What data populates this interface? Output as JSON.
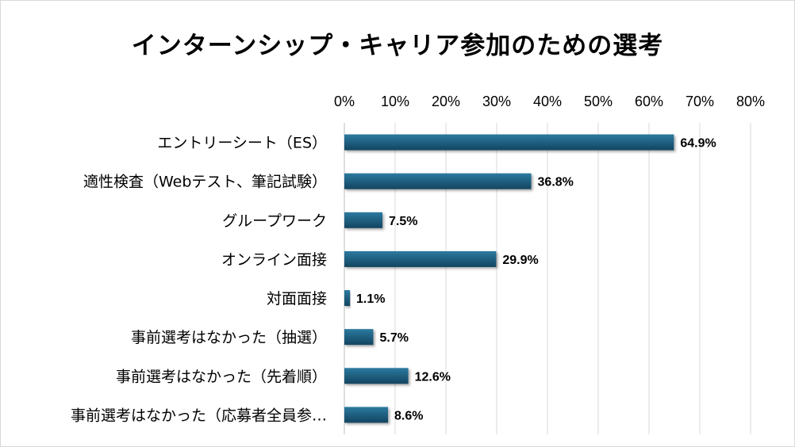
{
  "chart_data": {
    "type": "bar",
    "orientation": "horizontal",
    "title": "インターンシップ・キャリア参加のための選考",
    "xlim": [
      0,
      80
    ],
    "x_ticks": [
      "0%",
      "10%",
      "20%",
      "30%",
      "40%",
      "50%",
      "60%",
      "70%",
      "80%"
    ],
    "x_axis_position": "top",
    "grid": true,
    "bar_color": "#1f5f7f",
    "categories": [
      "エントリーシート（ES）",
      "適性検査（Webテスト、筆記試験）",
      "グループワーク",
      "オンライン面接",
      "対面面接",
      "事前選考はなかった（抽選）",
      "事前選考はなかった（先着順）",
      "事前選考はなかった（応募者全員参…"
    ],
    "values": [
      64.9,
      36.8,
      7.5,
      29.9,
      1.1,
      5.7,
      12.6,
      8.6
    ],
    "value_labels": [
      "64.9%",
      "36.8%",
      "7.5%",
      "29.9%",
      "1.1%",
      "5.7%",
      "12.6%",
      "8.6%"
    ]
  }
}
